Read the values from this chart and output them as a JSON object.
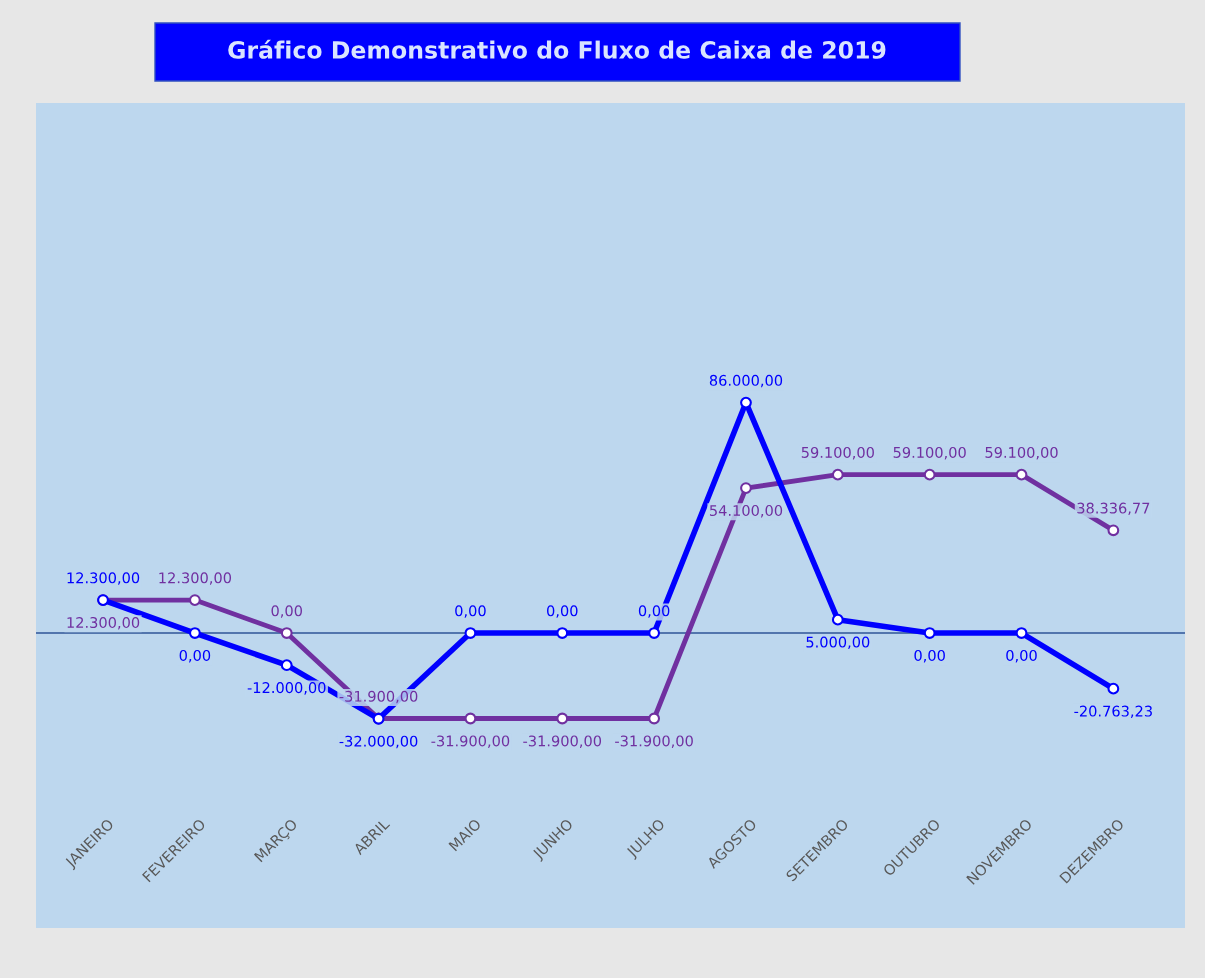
{
  "chart_data": {
    "type": "line",
    "title": "Gráfico Demonstrativo do Fluxo de Caixa de 2019",
    "categories": [
      "JANEIRO",
      "FEVEREIRO",
      "MARÇO",
      "ABRIL",
      "MAIO",
      "JUNHO",
      "JULHO",
      "AGOSTO",
      "SETEMBRO",
      "OUTUBRO",
      "NOVEMBRO",
      "DEZEMBRO"
    ],
    "series": [
      {
        "color": "#0000ff",
        "values": [
          12300,
          0,
          -12000,
          -32000,
          0,
          0,
          0,
          86000,
          5000,
          0,
          0,
          -20763.23
        ],
        "value_labels": [
          "12.300,00",
          "0,00",
          "-12.000,00",
          "-32.000,00",
          "0,00",
          "0,00",
          "0,00",
          "86.000,00",
          "5.000,00",
          "0,00",
          "0,00",
          "-20.763,23"
        ]
      },
      {
        "color": "#7030a0",
        "values": [
          12300,
          12300,
          0,
          -31900,
          -31900,
          -31900,
          -31900,
          54100,
          59100,
          59100,
          59100,
          38336.77
        ],
        "value_labels": [
          "12.300,00",
          "12.300,00",
          "0,00",
          "-31.900,00",
          "-31.900,00",
          "-31.900,00",
          "-31.900,00",
          "54.100,00",
          "59.100,00",
          "59.100,00",
          "59.100,00",
          "38.336,77"
        ]
      }
    ],
    "ref_lines": [
      {
        "axis": "y",
        "value": 0,
        "color": "#2f5597"
      }
    ],
    "marker": "circle",
    "line_style": "solid",
    "legend": false
  }
}
